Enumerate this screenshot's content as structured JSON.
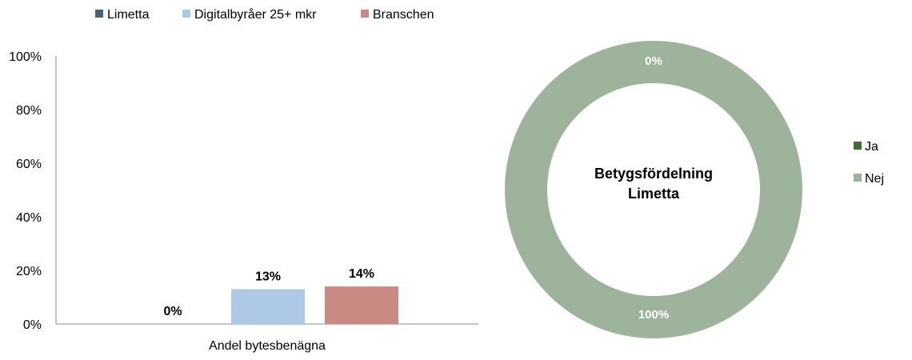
{
  "chart_data": [
    {
      "type": "bar",
      "categories": [
        "Andel bytesbenägna"
      ],
      "series": [
        {
          "name": "Limetta",
          "values": [
            0
          ],
          "color": "#4a6078",
          "label": "0%"
        },
        {
          "name": "Digitalbyråer 25+ mkr",
          "values": [
            13
          ],
          "color": "#adc9e6",
          "label": "13%"
        },
        {
          "name": "Branschen",
          "values": [
            14
          ],
          "color": "#c98a84",
          "label": "14%"
        }
      ],
      "ylim": [
        0,
        100
      ],
      "yticks": [
        "0%",
        "20%",
        "40%",
        "60%",
        "80%",
        "100%"
      ],
      "ytick_values": [
        0,
        20,
        40,
        60,
        80,
        100
      ],
      "legend_position": "top",
      "grid": false
    },
    {
      "type": "pie",
      "style": "donut",
      "center_text": [
        "Betygsfördelning",
        "Limetta"
      ],
      "slices": [
        {
          "name": "Ja",
          "value": 0,
          "color": "#3e6b39",
          "label": "0%"
        },
        {
          "name": "Nej",
          "value": 100,
          "color": "#9db39b",
          "label": "100%"
        }
      ],
      "legend_position": "right"
    }
  ]
}
